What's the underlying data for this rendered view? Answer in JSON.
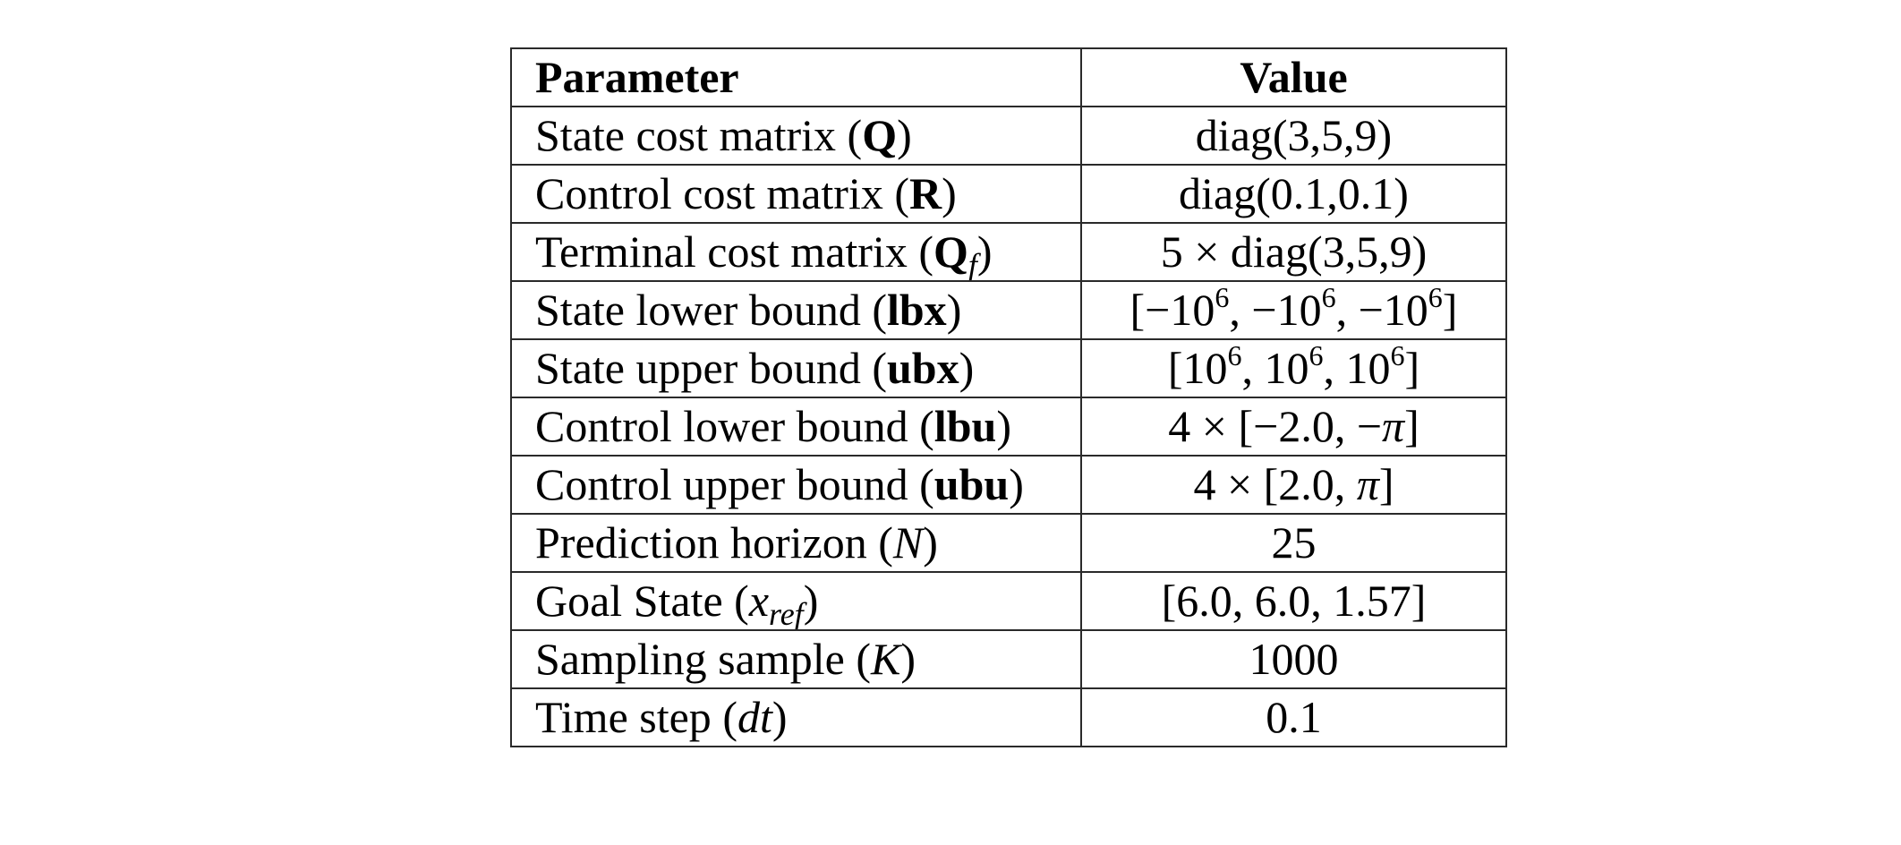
{
  "table": {
    "headers": {
      "parameter": "Parameter",
      "value": "Value"
    },
    "rows": [
      {
        "name": "State cost matrix",
        "symbol": "Q",
        "symbol_style": "bold",
        "symbol_sub": "",
        "value": "diag(3,5,9)"
      },
      {
        "name": "Control cost matrix",
        "symbol": "R",
        "symbol_style": "bold",
        "symbol_sub": "",
        "value": "diag(0.1,0.1)"
      },
      {
        "name": "Terminal cost matrix",
        "symbol": "Q",
        "symbol_style": "bold",
        "symbol_sub": "f",
        "value": "5 × diag(3,5,9)"
      },
      {
        "name": "State lower bound",
        "symbol": "lbx",
        "symbol_style": "bold",
        "symbol_sub": "",
        "value": "[−10^6, −10^6, −10^6]"
      },
      {
        "name": "State upper bound",
        "symbol": "ubx",
        "symbol_style": "bold",
        "symbol_sub": "",
        "value": "[10^6, 10^6, 10^6]"
      },
      {
        "name": "Control lower bound",
        "symbol": "lbu",
        "symbol_style": "bold",
        "symbol_sub": "",
        "value": "4 × [−2.0, −π]"
      },
      {
        "name": "Control upper bound",
        "symbol": "ubu",
        "symbol_style": "bold",
        "symbol_sub": "",
        "value": "4 × [2.0, π]"
      },
      {
        "name": "Prediction horizon",
        "symbol": "N",
        "symbol_style": "italic",
        "symbol_sub": "",
        "value": "25"
      },
      {
        "name": "Goal State",
        "symbol": "x",
        "symbol_style": "italic",
        "symbol_sub": "ref",
        "value": "[6.0, 6.0, 1.57]"
      },
      {
        "name": "Sampling sample",
        "symbol": "K",
        "symbol_style": "italic",
        "symbol_sub": "",
        "value": "1000"
      },
      {
        "name": "Time step",
        "symbol": "dt",
        "symbol_style": "italic",
        "symbol_sub": "",
        "value": "0.1"
      }
    ]
  }
}
